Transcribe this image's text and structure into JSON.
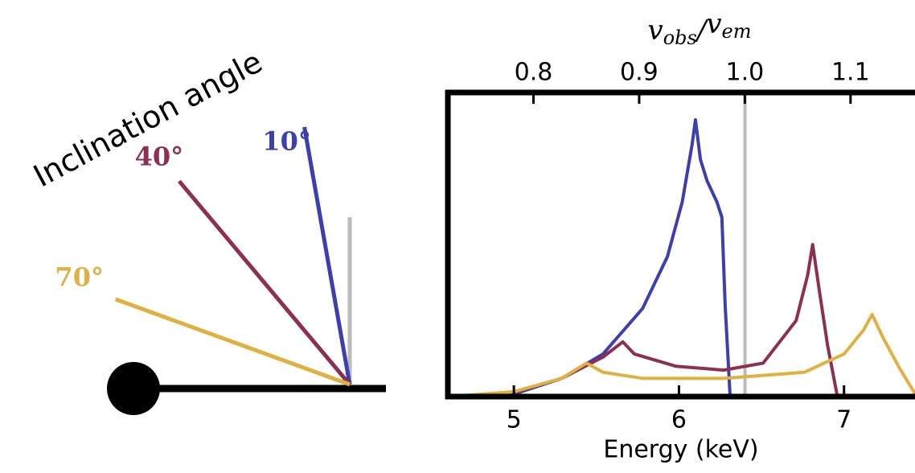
{
  "chart_data": {
    "type": "line",
    "annotation": "Inclination angle",
    "xlabel": "Energy (keV)",
    "x2label": "vobs/vem",
    "xlim": [
      4.6,
      7.43
    ],
    "xticks": [
      5,
      6,
      7
    ],
    "x2lim": [
      0.719,
      1.161
    ],
    "x2ticks": [
      0.8,
      0.9,
      {
        "value": 1,
        "label": "1.0"
      },
      1.1
    ],
    "ylim": [
      0,
      1
    ],
    "reference_line": 6.4,
    "series": [
      {
        "name": "10°",
        "color": "#3b3fb0",
        "angle": 10,
        "x": [
          4.61,
          5.0,
          5.29,
          5.54,
          5.78,
          5.93,
          6.02,
          6.08,
          6.1,
          6.13,
          6.17,
          6.23,
          6.26,
          6.28,
          6.31
        ],
        "values": [
          0,
          0.008,
          0.06,
          0.14,
          0.29,
          0.46,
          0.64,
          0.83,
          0.91,
          0.78,
          0.71,
          0.64,
          0.59,
          0.3,
          0
        ]
      },
      {
        "name": "40°",
        "color": "#8c2f52",
        "angle": 40,
        "x": [
          4.71,
          5.0,
          5.29,
          5.54,
          5.66,
          5.73,
          5.98,
          6.27,
          6.51,
          6.71,
          6.78,
          6.81,
          6.85,
          6.9,
          6.96
        ],
        "values": [
          0,
          0.013,
          0.06,
          0.13,
          0.18,
          0.14,
          0.1,
          0.087,
          0.11,
          0.25,
          0.4,
          0.5,
          0.35,
          0.17,
          0
        ]
      },
      {
        "name": "70°",
        "color": "#e0b040",
        "angle": 70,
        "x": [
          4.61,
          5.0,
          5.29,
          5.44,
          5.54,
          5.78,
          6.27,
          6.76,
          7.0,
          7.12,
          7.17,
          7.24,
          7.34,
          7.43
        ],
        "values": [
          0,
          0.016,
          0.06,
          0.11,
          0.08,
          0.06,
          0.06,
          0.08,
          0.14,
          0.22,
          0.27,
          0.19,
          0.09,
          0.01
        ]
      }
    ]
  }
}
